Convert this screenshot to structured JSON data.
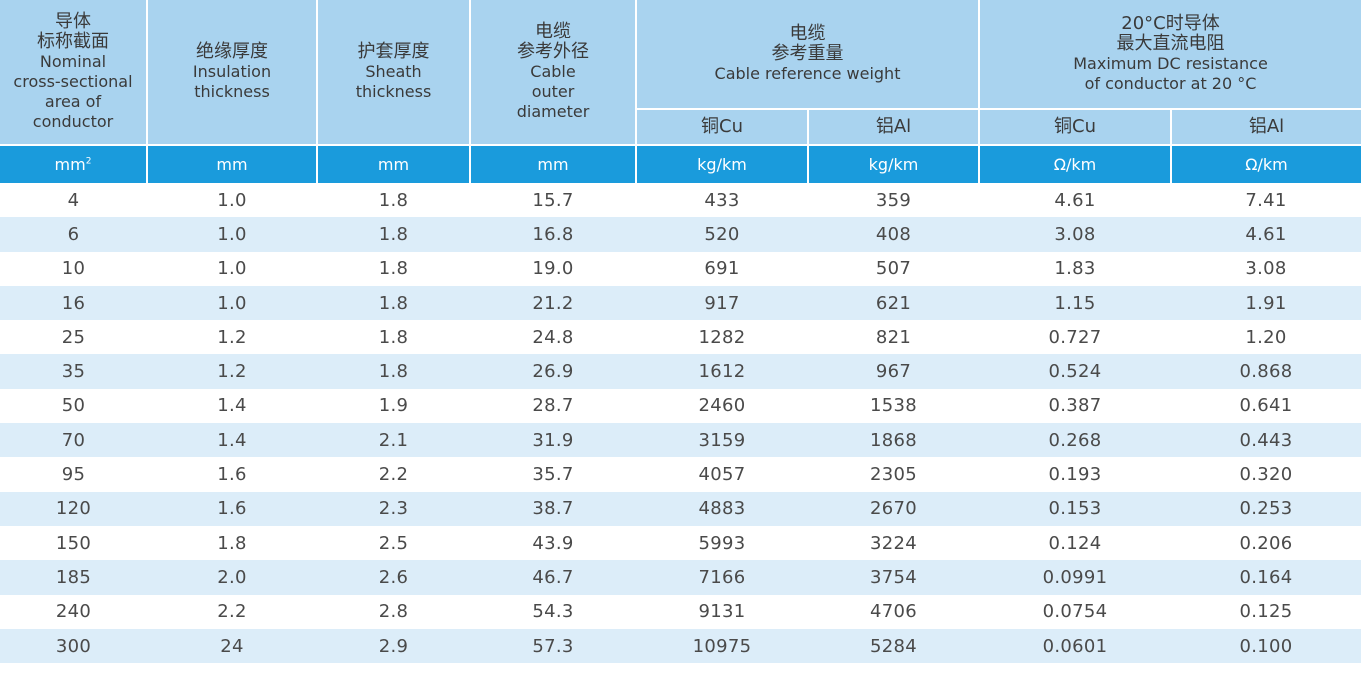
{
  "headers": {
    "area": {
      "zh1": "导体",
      "zh2": "标称截面",
      "en1": "Nominal",
      "en2": "cross-sectional",
      "en3": "area of",
      "en4": "conductor"
    },
    "insulation": {
      "zh": "绝缘厚度",
      "en1": "Insulation",
      "en2": "thickness"
    },
    "sheath": {
      "zh": "护套厚度",
      "en1": "Sheath",
      "en2": "thickness"
    },
    "diameter": {
      "zh1": "电缆",
      "zh2": "参考外径",
      "en1": "Cable",
      "en2": "outer",
      "en3": "diameter"
    },
    "weight": {
      "zh1": "电缆",
      "zh2": "参考重量",
      "en": "Cable reference weight",
      "cu": "铜Cu",
      "al": "铝Al"
    },
    "resistance": {
      "zh1": "20°C时导体",
      "zh2": "最大直流电阻",
      "en1": "Maximum DC resistance",
      "en2": "of conductor at 20 °C",
      "cu": "铜Cu",
      "al": "铝Al"
    }
  },
  "units": {
    "area": "mm",
    "area_sup": "2",
    "insulation": "mm",
    "sheath": "mm",
    "diameter": "mm",
    "weight_cu": "kg/km",
    "weight_al": "kg/km",
    "res_cu": "Ω/km",
    "res_al": "Ω/km"
  },
  "rows": [
    [
      "4",
      "1.0",
      "1.8",
      "15.7",
      "433",
      "359",
      "4.61",
      "7.41"
    ],
    [
      "6",
      "1.0",
      "1.8",
      "16.8",
      "520",
      "408",
      "3.08",
      "4.61"
    ],
    [
      "10",
      "1.0",
      "1.8",
      "19.0",
      "691",
      "507",
      "1.83",
      "3.08"
    ],
    [
      "16",
      "1.0",
      "1.8",
      "21.2",
      "917",
      "621",
      "1.15",
      "1.91"
    ],
    [
      "25",
      "1.2",
      "1.8",
      "24.8",
      "1282",
      "821",
      "0.727",
      "1.20"
    ],
    [
      "35",
      "1.2",
      "1.8",
      "26.9",
      "1612",
      "967",
      "0.524",
      "0.868"
    ],
    [
      "50",
      "1.4",
      "1.9",
      "28.7",
      "2460",
      "1538",
      "0.387",
      "0.641"
    ],
    [
      "70",
      "1.4",
      "2.1",
      "31.9",
      "3159",
      "1868",
      "0.268",
      "0.443"
    ],
    [
      "95",
      "1.6",
      "2.2",
      "35.7",
      "4057",
      "2305",
      "0.193",
      "0.320"
    ],
    [
      "120",
      "1.6",
      "2.3",
      "38.7",
      "4883",
      "2670",
      "0.153",
      "0.253"
    ],
    [
      "150",
      "1.8",
      "2.5",
      "43.9",
      "5993",
      "3224",
      "0.124",
      "0.206"
    ],
    [
      "185",
      "2.0",
      "2.6",
      "46.7",
      "7166",
      "3754",
      "0.0991",
      "0.164"
    ],
    [
      "240",
      "2.2",
      "2.8",
      "54.3",
      "9131",
      "4706",
      "0.0754",
      "0.125"
    ],
    [
      "300",
      "24",
      "2.9",
      "57.3",
      "10975",
      "5284",
      "0.0601",
      "0.100"
    ]
  ]
}
